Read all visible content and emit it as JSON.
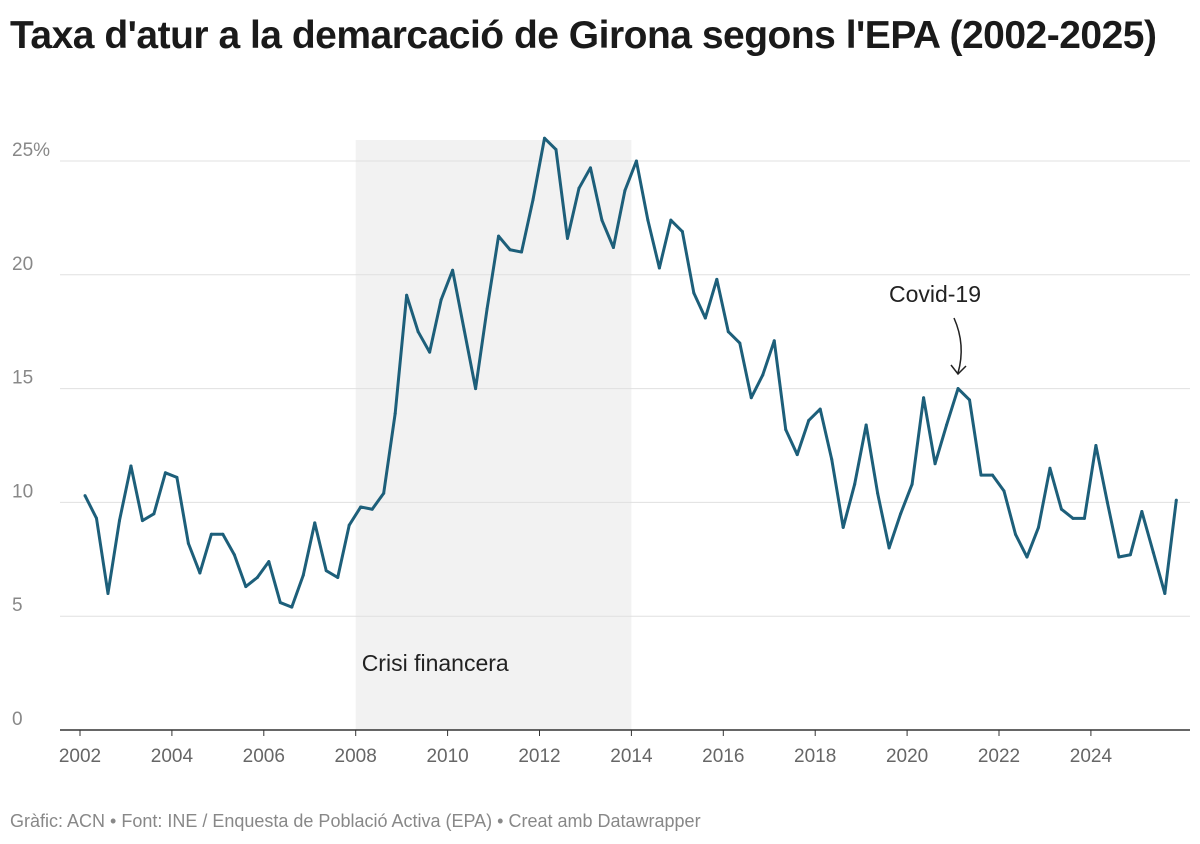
{
  "title": "Taxa d'atur a la demarcació de Girona segons l'EPA (2002-2025)",
  "footer": "Gràfic: ACN • Font: INE / Enquesta de Població Activa (EPA) • Creat amb Datawrapper",
  "chart_data": {
    "type": "line",
    "title": "Taxa d'atur a la demarcació de Girona segons l'EPA (2002-2025)",
    "xlabel": "",
    "ylabel": "",
    "ylim": [
      0,
      25
    ],
    "yticks": [
      "0",
      "5",
      "10",
      "15",
      "20",
      "25%"
    ],
    "xticks": [
      "2002",
      "2004",
      "2006",
      "2008",
      "2010",
      "2012",
      "2014",
      "2016",
      "2018",
      "2020",
      "2022",
      "2024"
    ],
    "grid": true,
    "line_color": "#1d5f7a",
    "start_year": 2002,
    "frequency": "quarterly",
    "values": [
      10.3,
      9.3,
      6.0,
      9.2,
      11.6,
      9.2,
      9.5,
      11.3,
      11.1,
      8.2,
      6.9,
      8.6,
      8.6,
      7.7,
      6.3,
      6.7,
      7.4,
      5.6,
      5.4,
      6.8,
      9.1,
      7.0,
      6.7,
      9.0,
      9.8,
      9.7,
      10.4,
      13.9,
      19.1,
      17.5,
      16.6,
      18.9,
      20.2,
      17.6,
      15.0,
      18.5,
      21.7,
      21.1,
      21.0,
      23.3,
      26.0,
      25.5,
      21.6,
      23.8,
      24.7,
      22.4,
      21.2,
      23.7,
      25.0,
      22.4,
      20.3,
      22.4,
      21.9,
      19.2,
      18.1,
      19.8,
      17.5,
      17.0,
      14.6,
      15.6,
      17.1,
      13.2,
      12.1,
      13.6,
      14.1,
      11.9,
      8.9,
      10.8,
      13.4,
      10.4,
      8.0,
      9.5,
      10.8,
      14.6,
      11.7,
      13.4,
      15.0,
      14.5,
      11.2,
      11.2,
      10.5,
      8.6,
      7.6,
      8.9,
      11.5,
      9.7,
      9.3,
      9.3,
      12.5,
      10.0,
      7.6,
      7.7,
      9.6,
      7.8,
      6.0,
      10.1
    ],
    "annotations": [
      {
        "text": "Crisi financera",
        "type": "range",
        "from": 2008,
        "to": 2014
      },
      {
        "text": "Covid-19",
        "type": "arrow",
        "x": 2021,
        "y": 15.0
      }
    ]
  }
}
